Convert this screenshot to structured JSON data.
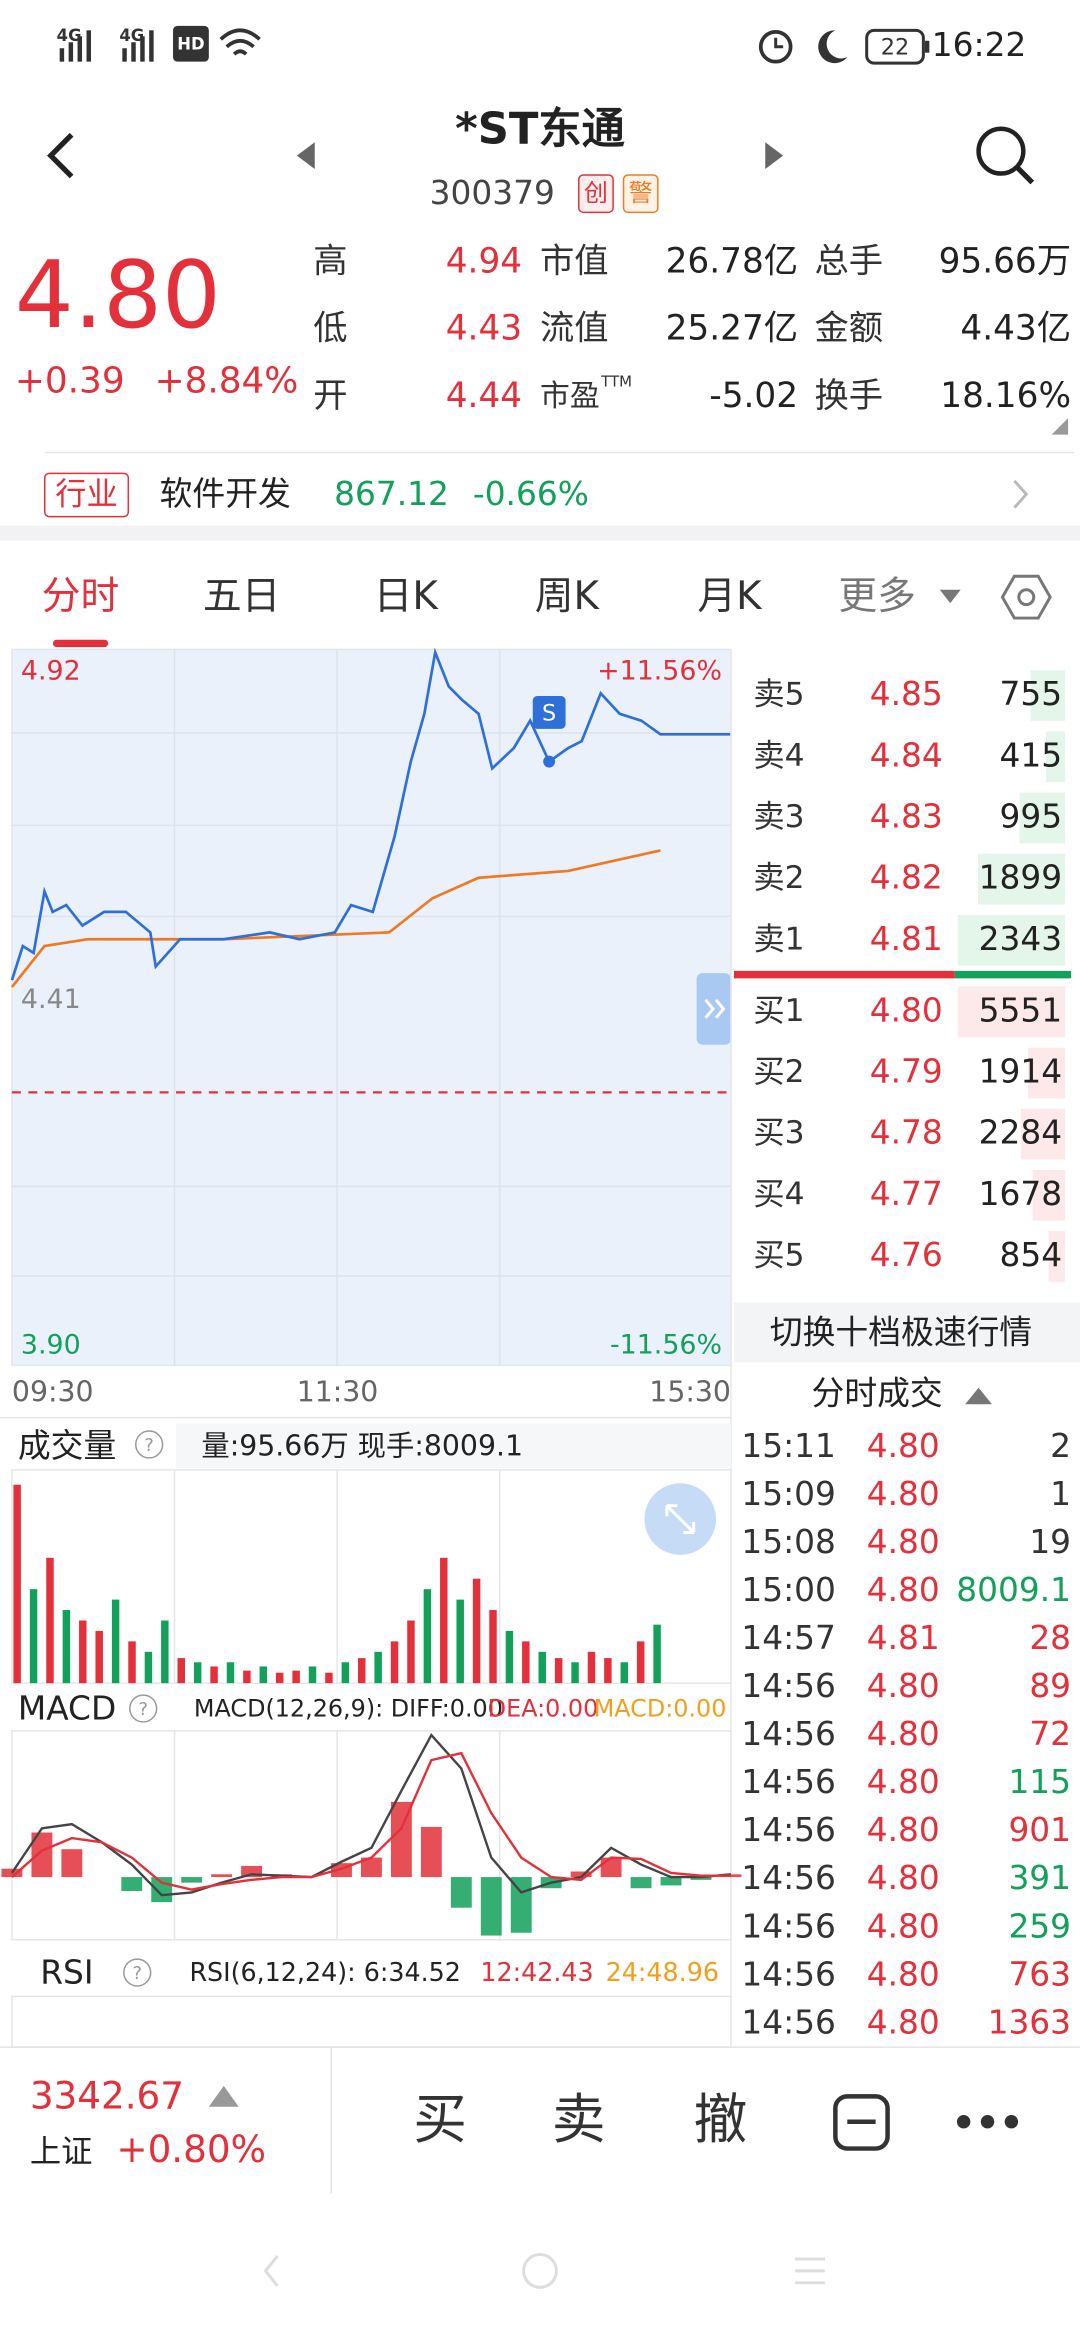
{
  "status_bar": {
    "network": [
      "4G",
      "4G"
    ],
    "hd": "HD",
    "battery": "22",
    "time": "16:22"
  },
  "header": {
    "title": "*ST东通",
    "code": "300379",
    "tags": [
      "创",
      "警"
    ]
  },
  "quote": {
    "price": "4.80",
    "change": "+0.39",
    "change_pct": "+8.84%",
    "stats": [
      [
        {
          "label": "高",
          "value": "4.94"
        },
        {
          "label": "市值",
          "value": "26.78亿"
        },
        {
          "label": "总手",
          "value": "95.66万"
        }
      ],
      [
        {
          "label": "低",
          "value": "4.43"
        },
        {
          "label": "流值",
          "value": "25.27亿"
        },
        {
          "label": "金额",
          "value": "4.43亿"
        }
      ],
      [
        {
          "label": "开",
          "value": "4.44"
        },
        {
          "label": "市盈",
          "sup": "TTM",
          "value": "-5.02"
        },
        {
          "label": "换手",
          "value": "18.16%"
        }
      ]
    ]
  },
  "industry": {
    "tag": "行业",
    "name": "软件开发",
    "value": "867.12",
    "change": "-0.66%"
  },
  "tabs": {
    "items": [
      "分时",
      "五日",
      "日K",
      "周K",
      "月K",
      "更多"
    ],
    "active": 0
  },
  "price_chart": {
    "type": "line",
    "ylim": [
      3.9,
      4.92
    ],
    "yticks": [
      {
        "value": 3.9,
        "label": "3.90"
      },
      4.41,
      4.92
    ],
    "pct_labels": [
      "+11.56%",
      "-11.56%"
    ],
    "xlim": [
      0,
      265
    ],
    "xticks": [
      {
        "value": 0,
        "label": "09:30"
      },
      {
        "value": 120,
        "label": "11:30"
      },
      {
        "value": 265,
        "label": "15:30"
      }
    ],
    "series": [
      {
        "color": "#2f6fd8",
        "x": [
          0,
          4,
          8,
          12,
          15,
          20,
          26,
          34,
          42,
          51,
          53,
          62,
          78,
          95,
          106,
          119,
          125,
          133,
          141,
          147,
          152,
          156,
          161,
          166,
          172,
          177,
          185,
          191,
          198,
          205,
          210,
          217,
          224,
          232,
          239,
          265
        ],
        "values": [
          4.44,
          4.49,
          4.48,
          4.57,
          4.54,
          4.55,
          4.52,
          4.54,
          4.54,
          4.51,
          4.46,
          4.5,
          4.5,
          4.51,
          4.5,
          4.51,
          4.55,
          4.54,
          4.65,
          4.76,
          4.83,
          4.92,
          4.87,
          4.85,
          4.83,
          4.75,
          4.78,
          4.82,
          4.76,
          4.78,
          4.79,
          4.86,
          4.83,
          4.82,
          4.8,
          4.8
        ]
      },
      {
        "color": "#f07a22",
        "x": [
          0,
          12,
          28,
          78,
          139,
          155,
          172,
          205,
          239
        ],
        "values": [
          4.43,
          4.49,
          4.5,
          4.5,
          4.51,
          4.56,
          4.59,
          4.6,
          4.63
        ]
      }
    ],
    "marker": {
      "label": "S",
      "x": 198,
      "value": 4.76
    }
  },
  "order_book": {
    "asks": [
      {
        "label": "卖5",
        "price": "4.85",
        "volume": 755
      },
      {
        "label": "卖4",
        "price": "4.84",
        "volume": 415
      },
      {
        "label": "卖3",
        "price": "4.83",
        "volume": 995
      },
      {
        "label": "卖2",
        "price": "4.82",
        "volume": 1899
      },
      {
        "label": "卖1",
        "price": "4.81",
        "volume": 2343
      }
    ],
    "bids": [
      {
        "label": "买1",
        "price": "4.80",
        "volume": 5551
      },
      {
        "label": "买2",
        "price": "4.79",
        "volume": 1914
      },
      {
        "label": "买3",
        "price": "4.78",
        "volume": 2284
      },
      {
        "label": "买4",
        "price": "4.77",
        "volume": 1678
      },
      {
        "label": "买5",
        "price": "4.76",
        "volume": 854
      }
    ],
    "switch": "切换十档极速行情"
  },
  "trades": {
    "title": "分时成交",
    "rows": [
      {
        "time": "15:11",
        "price": "4.80",
        "volume": "2",
        "color": "#333333"
      },
      {
        "time": "15:09",
        "price": "4.80",
        "volume": "1",
        "color": "#333333"
      },
      {
        "time": "15:08",
        "price": "4.80",
        "volume": "19",
        "color": "#333333"
      },
      {
        "time": "15:00",
        "price": "4.80",
        "volume": "8009.1",
        "color": "#12a05a"
      },
      {
        "time": "14:57",
        "price": "4.81",
        "volume": "28",
        "color": "#e3303a"
      },
      {
        "time": "14:56",
        "price": "4.80",
        "volume": "89",
        "color": "#e3303a"
      },
      {
        "time": "14:56",
        "price": "4.80",
        "volume": "72",
        "color": "#e3303a"
      },
      {
        "time": "14:56",
        "price": "4.80",
        "volume": "115",
        "color": "#12a05a"
      },
      {
        "time": "14:56",
        "price": "4.80",
        "volume": "901",
        "color": "#e3303a"
      },
      {
        "time": "14:56",
        "price": "4.80",
        "volume": "391",
        "color": "#12a05a"
      },
      {
        "time": "14:56",
        "price": "4.80",
        "volume": "259",
        "color": "#12a05a"
      },
      {
        "time": "14:56",
        "price": "4.80",
        "volume": "763",
        "color": "#e3303a"
      },
      {
        "time": "14:56",
        "price": "4.80",
        "volume": "1363",
        "color": "#e3303a"
      }
    ]
  },
  "volume_panel": {
    "type": "bar",
    "title": "成交量",
    "info": "量:95.66万 现手:8009.1",
    "ylim": [
      0,
      100
    ],
    "values": [
      95,
      45,
      60,
      35,
      30,
      25,
      40,
      20,
      15,
      30,
      12,
      10,
      8,
      10,
      6,
      8,
      5,
      6,
      8,
      5,
      10,
      12,
      15,
      20,
      30,
      45,
      60,
      40,
      50,
      35,
      25,
      20,
      15,
      12,
      10,
      15,
      12,
      10,
      20,
      28
    ],
    "up": [
      true,
      false,
      true,
      false,
      true,
      true,
      false,
      true,
      false,
      false,
      true,
      false,
      true,
      false,
      true,
      false,
      true,
      true,
      false,
      true,
      false,
      true,
      false,
      true,
      true,
      false,
      true,
      false,
      true,
      true,
      false,
      true,
      false,
      true,
      false,
      true,
      true,
      false,
      true,
      false
    ]
  },
  "macd_panel": {
    "type": "line",
    "title": "MACD",
    "params": "MACD(12,26,9): DIFF:0.00",
    "dea_label": "DEA:0.00",
    "macd_label": "MACD:0.00",
    "ylim": [
      -45,
      105
    ],
    "diff": [
      3,
      35,
      38,
      25,
      9,
      -13,
      -11,
      -4,
      2,
      1,
      0,
      11,
      21,
      62,
      102,
      78,
      14,
      -11,
      -4,
      0,
      21,
      9,
      0,
      0,
      2
    ],
    "dea": [
      0,
      19,
      28,
      25,
      14,
      -4,
      -9,
      -5,
      -2,
      0,
      0,
      6,
      14,
      35,
      84,
      89,
      46,
      14,
      0,
      -2,
      14,
      13,
      3,
      1,
      1
    ],
    "hist": [
      6,
      32,
      20,
      0,
      -10,
      -18,
      -4,
      2,
      8,
      2,
      0,
      10,
      14,
      54,
      36,
      -22,
      -42,
      -40,
      -8,
      4,
      14,
      -8,
      -6,
      -2,
      2
    ]
  },
  "rsi_panel": {
    "title": "RSI",
    "params": "RSI(6,12,24): 6:34.52",
    "r12": "12:42.43",
    "r24": "24:48.96"
  },
  "footer": {
    "index_value": "3342.67",
    "index_name": "上证",
    "index_change": "+0.80%",
    "buttons": [
      "买",
      "卖",
      "撤"
    ]
  }
}
